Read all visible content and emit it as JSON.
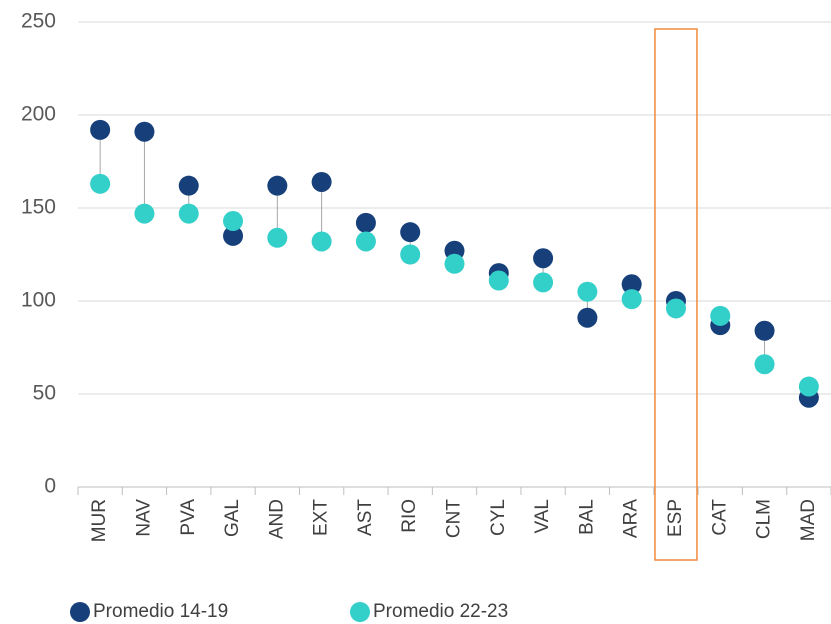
{
  "chart_data": {
    "type": "dot",
    "categories": [
      "MUR",
      "NAV",
      "PVA",
      "GAL",
      "AND",
      "EXT",
      "AST",
      "RIO",
      "CNT",
      "CYL",
      "VAL",
      "BAL",
      "ARA",
      "ESP",
      "CAT",
      "CLM",
      "MAD"
    ],
    "series": [
      {
        "name": "Promedio 14-19",
        "color": "#17407a",
        "values": [
          192,
          191,
          162,
          135,
          162,
          164,
          142,
          137,
          127,
          115,
          123,
          91,
          109,
          100,
          87,
          84,
          48
        ]
      },
      {
        "name": "Promedio 22-23",
        "color": "#33cfc9",
        "values": [
          163,
          147,
          147,
          143,
          134,
          132,
          132,
          125,
          120,
          111,
          110,
          105,
          101,
          96,
          92,
          66,
          54
        ]
      }
    ],
    "ylim": [
      0,
      250
    ],
    "yticks": [
      0,
      50,
      100,
      150,
      200,
      250
    ],
    "grid": true,
    "highlight": "ESP",
    "highlight_color": "#f08a3c"
  }
}
